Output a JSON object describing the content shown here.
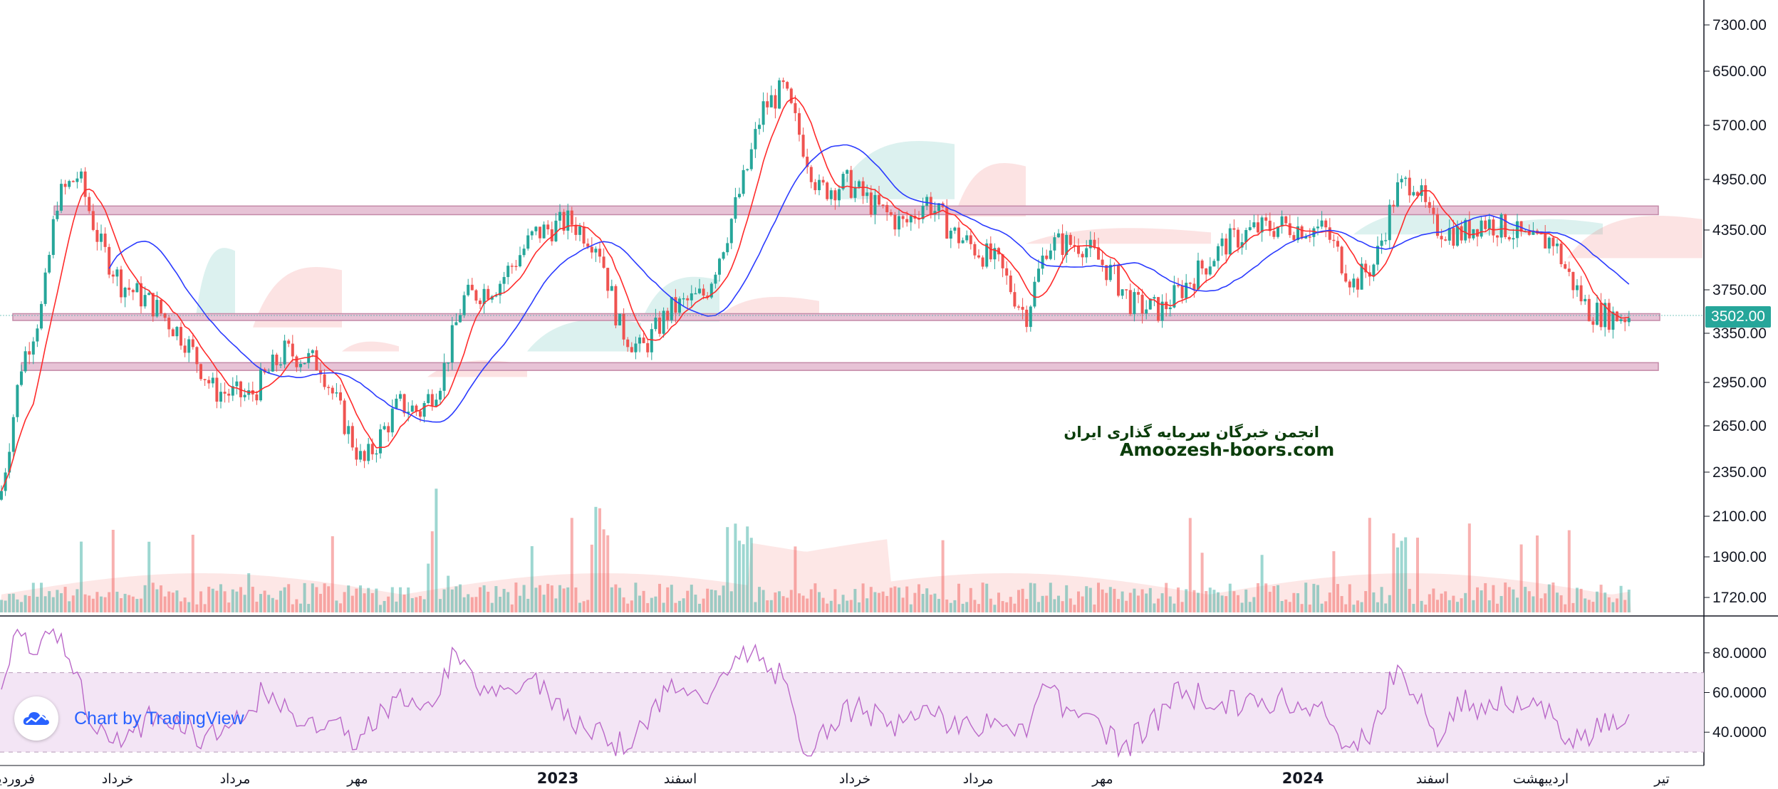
{
  "watermark": {
    "title": "انجمن خبرگان سرمایه گذاری ایران",
    "url": "Amoozesh-boors.com"
  },
  "branding": {
    "text": "Chart by TradingView",
    "icon": "tradingview-cloud-icon"
  },
  "current_price": "3502.00",
  "colors": {
    "up": "#26a69a",
    "down": "#ef5350",
    "ma_fast": "#ff2b2b",
    "ma_slow": "#2b3bff",
    "zone": "#e7c3d6",
    "zone_border": "#c48aa8",
    "rsi_line": "#ba68c8",
    "rsi_band": "#f3e5f5"
  },
  "chart_data": [
    {
      "type": "candlestick",
      "series": [
        {
          "name": "price"
        },
        {
          "name": "moving-average-fast"
        },
        {
          "name": "moving-average-slow"
        },
        {
          "name": "ichimoku-cloud"
        }
      ],
      "y_ticks": [
        "7300.00",
        "6500.00",
        "5700.00",
        "4950.00",
        "4350.00",
        "3750.00",
        "3350.00",
        "2950.00",
        "2650.00",
        "2350.00",
        "2100.00",
        "1900.00",
        "1720.00"
      ],
      "y_scale": "log",
      "x_ticks": [
        {
          "label": "فروردین",
          "bold": false
        },
        {
          "label": "خرداد",
          "bold": false
        },
        {
          "label": "مرداد",
          "bold": false
        },
        {
          "label": "مهر",
          "bold": false
        },
        {
          "label": "2023",
          "bold": true
        },
        {
          "label": "اسفند",
          "bold": false
        },
        {
          "label": "خرداد",
          "bold": false
        },
        {
          "label": "مرداد",
          "bold": false
        },
        {
          "label": "مهر",
          "bold": false
        },
        {
          "label": "2024",
          "bold": true
        },
        {
          "label": "اسفند",
          "bold": false
        },
        {
          "label": "اردیبهشت",
          "bold": false
        },
        {
          "label": "تیر",
          "bold": false
        }
      ],
      "key_points": [
        {
          "label": "start",
          "value": 2200
        },
        {
          "label": "peak-1",
          "value": 5300
        },
        {
          "label": "low-1",
          "value": 2350
        },
        {
          "label": "peak-2023",
          "value": 6600
        },
        {
          "label": "peak-2024",
          "value": 5050
        },
        {
          "label": "last",
          "value": 3502
        }
      ],
      "horizontal_zones": [
        {
          "low": 4520,
          "high": 4620
        },
        {
          "low": 3460,
          "high": 3520
        },
        {
          "low": 3050,
          "high": 3110
        }
      ],
      "grid": false
    },
    {
      "type": "bar",
      "series": [
        {
          "name": "volume"
        }
      ],
      "y_ticks": []
    },
    {
      "type": "line",
      "series": [
        {
          "name": "RSI"
        }
      ],
      "y_ticks": [
        "80.0000",
        "60.0000",
        "40.0000"
      ],
      "ylim": [
        25,
        95
      ],
      "bands": [
        30,
        70
      ]
    }
  ]
}
